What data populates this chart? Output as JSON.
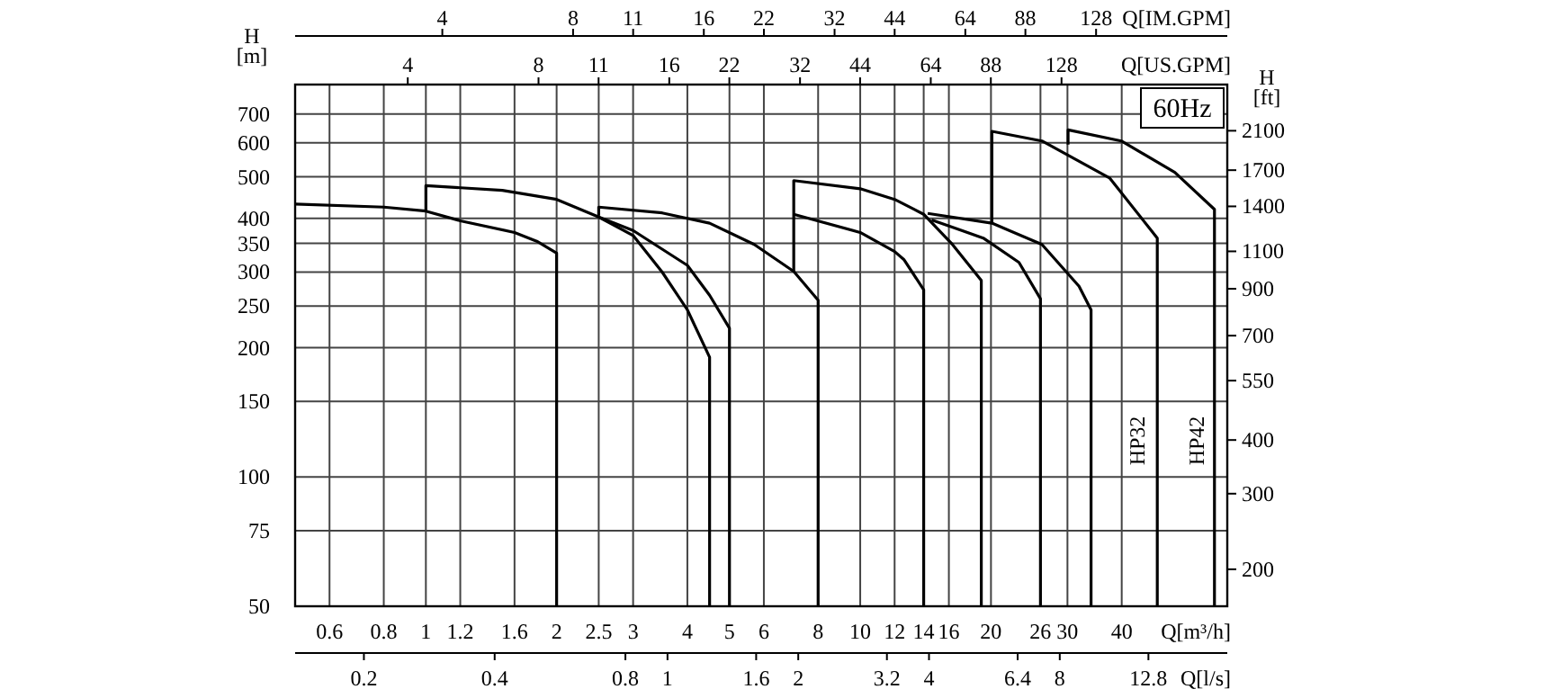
{
  "chart_data": {
    "type": "line",
    "xlabel": "Q[m³/h]",
    "ylabel": "H [m]",
    "y2label": "H [ft]",
    "x2label": "Q[US.GPM]",
    "log": "xy",
    "grid": true,
    "xlim": [
      0.5,
      70
    ],
    "xticks": [
      0.6,
      0.8,
      1,
      1.2,
      1.6,
      2,
      2.5,
      3,
      4,
      5,
      6,
      8,
      10,
      12,
      14,
      16,
      20,
      26,
      30,
      40
    ],
    "ylim": [
      50,
      820
    ],
    "yticks": [
      50,
      75,
      100,
      150,
      200,
      250,
      300,
      350,
      400,
      500,
      600,
      700
    ],
    "annotations": [
      "60Hz",
      "HP32",
      "HP42",
      "4",
      "8",
      "11",
      "16",
      "22",
      "32",
      "44",
      "64",
      "88",
      "128",
      "Q[IM.GPM]",
      "0.2",
      "0.4",
      "0.8",
      "1",
      "1.6",
      "2",
      "3.2",
      "4",
      "6.4",
      "8",
      "12.8",
      "Q[l/s]",
      "4",
      "8",
      "11",
      "16",
      "22",
      "32",
      "44",
      "64",
      "88",
      "128",
      "200",
      "300",
      "400",
      "550",
      "700",
      "900",
      "1100",
      "1400",
      "1700",
      "2100"
    ],
    "series": [
      {
        "color": "#000000",
        "x": [
          0.5,
          0.8,
          1,
          1.2,
          1.6,
          1.8,
          2,
          2
        ],
        "values": [
          432,
          425,
          416,
          395,
          371,
          354,
          332,
          50
        ]
      },
      {
        "color": "#000000",
        "x": [
          1,
          1,
          1.5,
          2,
          2.5,
          3,
          3.5,
          4,
          4.5,
          4.5
        ],
        "values": [
          416,
          477,
          465,
          443,
          403,
          365,
          300,
          245,
          190,
          50
        ]
      },
      {
        "color": "#000000",
        "x": [
          2.5,
          3,
          4,
          4.5,
          5,
          5
        ],
        "values": [
          403,
          375,
          311,
          265,
          222,
          50
        ]
      },
      {
        "color": "#000000",
        "x": [
          2.5,
          2.5,
          3.5,
          4.5,
          5.7,
          7.03,
          8,
          8
        ],
        "values": [
          406,
          425,
          412,
          390,
          348,
          301,
          258,
          50
        ]
      },
      {
        "color": "#000000",
        "x": [
          7.03,
          7.03,
          10,
          12,
          14,
          16.3,
          19,
          19
        ],
        "values": [
          301,
          490,
          469,
          443,
          409,
          348,
          287,
          50
        ]
      },
      {
        "color": "#000000",
        "x": [
          7.03,
          10,
          12,
          12.6,
          14,
          14
        ],
        "values": [
          409,
          371,
          335,
          321,
          273,
          50
        ]
      },
      {
        "color": "#000000",
        "x": [
          14.3,
          20.1,
          26.2,
          31.9,
          34,
          34
        ],
        "values": [
          411,
          390,
          348,
          278,
          245,
          50
        ]
      },
      {
        "color": "#000000",
        "x": [
          14.6,
          19.2,
          23.2,
          26,
          26
        ],
        "values": [
          397,
          360,
          316,
          260,
          50
        ]
      },
      {
        "color": "#000000",
        "x": [
          20.1,
          20.1,
          26.2,
          37.5,
          48.3,
          48.3
        ],
        "values": [
          390,
          638,
          606,
          497,
          360,
          50
        ]
      },
      {
        "color": "#000000",
        "x": [
          30.1,
          30.1,
          39.9,
          53,
          65.4,
          65.4
        ],
        "values": [
          594,
          643,
          606,
          512,
          420,
          50
        ]
      }
    ]
  }
}
